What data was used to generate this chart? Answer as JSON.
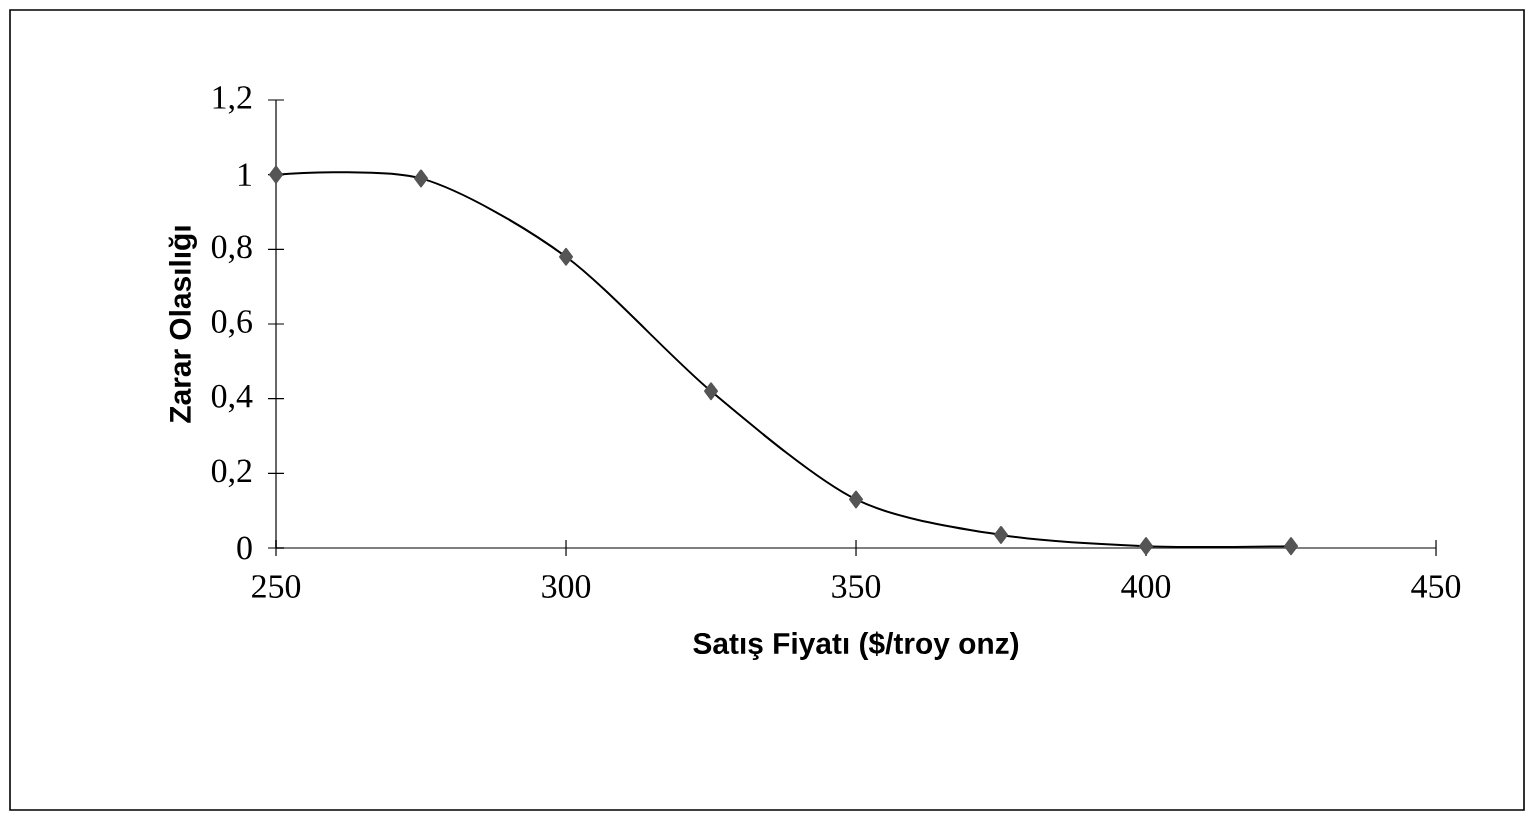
{
  "chart_data": {
    "type": "line",
    "xlabel": "Satış Fiyatı ($/troy onz)",
    "ylabel": "Zarar Olasılığı",
    "x": [
      250,
      275,
      300,
      325,
      350,
      375,
      400,
      425
    ],
    "series": [
      {
        "color": "#555555",
        "values": [
          1.0,
          0.99,
          0.78,
          0.42,
          0.13,
          0.035,
          0.005,
          0.005
        ]
      }
    ],
    "xlim": [
      250,
      450
    ],
    "xticks": [
      250,
      300,
      350,
      400,
      450
    ],
    "ylim": [
      0,
      1.2
    ],
    "yticks": [
      {
        "value": 0,
        "label": "0"
      },
      {
        "value": 0.2,
        "label": "0,2"
      },
      {
        "value": 0.4,
        "label": "0,4"
      },
      {
        "value": 0.6,
        "label": "0,6"
      },
      {
        "value": 0.8,
        "label": "0,8"
      },
      {
        "value": 1,
        "label": "1"
      },
      {
        "value": 1.2,
        "label": "1,2"
      }
    ],
    "marker": "diamond",
    "line_style": "solid",
    "grid": false
  }
}
